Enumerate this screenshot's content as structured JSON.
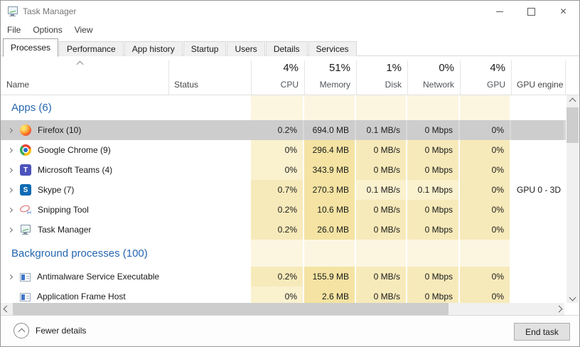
{
  "window": {
    "title": "Task Manager"
  },
  "menu": {
    "items": [
      "File",
      "Options",
      "View"
    ]
  },
  "tabs": {
    "items": [
      {
        "label": "Processes",
        "active": true
      },
      {
        "label": "Performance",
        "active": false
      },
      {
        "label": "App history",
        "active": false
      },
      {
        "label": "Startup",
        "active": false
      },
      {
        "label": "Users",
        "active": false
      },
      {
        "label": "Details",
        "active": false
      },
      {
        "label": "Services",
        "active": false
      }
    ]
  },
  "columns": {
    "name_label": "Name",
    "status_label": "Status",
    "metrics": [
      {
        "value": "4%",
        "label": "CPU"
      },
      {
        "value": "51%",
        "label": "Memory"
      },
      {
        "value": "1%",
        "label": "Disk"
      },
      {
        "value": "0%",
        "label": "Network"
      },
      {
        "value": "4%",
        "label": "GPU"
      }
    ],
    "gpu_engine_label": "GPU engine",
    "sort_column": "Name",
    "sort_direction": "ascending"
  },
  "rows": [
    {
      "type": "group",
      "label": "Apps (6)"
    },
    {
      "type": "process",
      "name": "Firefox (10)",
      "icon": "firefox-icon",
      "expandable": true,
      "selected": true,
      "cpu": "0.2%",
      "memory": "694.0 MB",
      "disk": "0.1 MB/s",
      "network": "0 Mbps",
      "gpu": "0%",
      "gpu_engine": "",
      "heat": {
        "cpu": "sel",
        "memory": "sel",
        "disk": "sel",
        "network": "sel",
        "gpu": "sel"
      }
    },
    {
      "type": "process",
      "name": "Google Chrome (9)",
      "icon": "chrome-icon",
      "expandable": true,
      "selected": false,
      "cpu": "0%",
      "memory": "296.4 MB",
      "disk": "0 MB/s",
      "network": "0 Mbps",
      "gpu": "0%",
      "gpu_engine": "",
      "heat": {
        "cpu": "low",
        "memory": "high",
        "disk": "mid",
        "network": "mid",
        "gpu": "mid"
      }
    },
    {
      "type": "process",
      "name": "Microsoft Teams (4)",
      "icon": "teams-icon",
      "expandable": true,
      "selected": false,
      "cpu": "0%",
      "memory": "343.9 MB",
      "disk": "0 MB/s",
      "network": "0 Mbps",
      "gpu": "0%",
      "gpu_engine": "",
      "heat": {
        "cpu": "low",
        "memory": "high",
        "disk": "mid",
        "network": "mid",
        "gpu": "mid"
      }
    },
    {
      "type": "process",
      "name": "Skype (7)",
      "icon": "skype-icon",
      "expandable": true,
      "selected": false,
      "cpu": "0.7%",
      "memory": "270.3 MB",
      "disk": "0.1 MB/s",
      "network": "0.1 Mbps",
      "gpu": "0%",
      "gpu_engine": "GPU 0 - 3D",
      "heat": {
        "cpu": "mid",
        "memory": "high",
        "disk": "low",
        "network": "low",
        "gpu": "mid"
      }
    },
    {
      "type": "process",
      "name": "Snipping Tool",
      "icon": "snipping-tool-icon",
      "expandable": true,
      "selected": false,
      "cpu": "0.2%",
      "memory": "10.6 MB",
      "disk": "0 MB/s",
      "network": "0 Mbps",
      "gpu": "0%",
      "gpu_engine": "",
      "heat": {
        "cpu": "mid",
        "memory": "high",
        "disk": "mid",
        "network": "mid",
        "gpu": "mid"
      }
    },
    {
      "type": "process",
      "name": "Task Manager",
      "icon": "task-manager-icon",
      "expandable": true,
      "selected": false,
      "cpu": "0.2%",
      "memory": "26.0 MB",
      "disk": "0 MB/s",
      "network": "0 Mbps",
      "gpu": "0%",
      "gpu_engine": "",
      "heat": {
        "cpu": "mid",
        "memory": "high",
        "disk": "mid",
        "network": "mid",
        "gpu": "mid"
      }
    },
    {
      "type": "group",
      "label": "Background processes (100)"
    },
    {
      "type": "process",
      "name": "Antimalware Service Executable",
      "icon": "process-icon",
      "expandable": true,
      "selected": false,
      "cpu": "0.2%",
      "memory": "155.9 MB",
      "disk": "0 MB/s",
      "network": "0 Mbps",
      "gpu": "0%",
      "gpu_engine": "",
      "heat": {
        "cpu": "mid",
        "memory": "high",
        "disk": "mid",
        "network": "mid",
        "gpu": "mid"
      }
    },
    {
      "type": "process",
      "name": "Application Frame Host",
      "icon": "process-icon",
      "expandable": false,
      "selected": false,
      "cpu": "0%",
      "memory": "2.6 MB",
      "disk": "0 MB/s",
      "network": "0 Mbps",
      "gpu": "0%",
      "gpu_engine": "",
      "heat": {
        "cpu": "low",
        "memory": "high",
        "disk": "mid",
        "network": "mid",
        "gpu": "mid"
      }
    }
  ],
  "footer": {
    "fewer_details_label": "Fewer details",
    "end_task_label": "End task"
  },
  "colors": {
    "accent_blue": "#2566b0",
    "selection_gray": "#cdcdcd",
    "heat_group": "#fcf6e1",
    "heat_low": "#faf1cf",
    "heat_mid": "#f7eaba",
    "heat_high": "#f4e3a2",
    "tab_inactive_bg": "#f0f0f0",
    "scrollbar_thumb": "#cdcdcd"
  }
}
